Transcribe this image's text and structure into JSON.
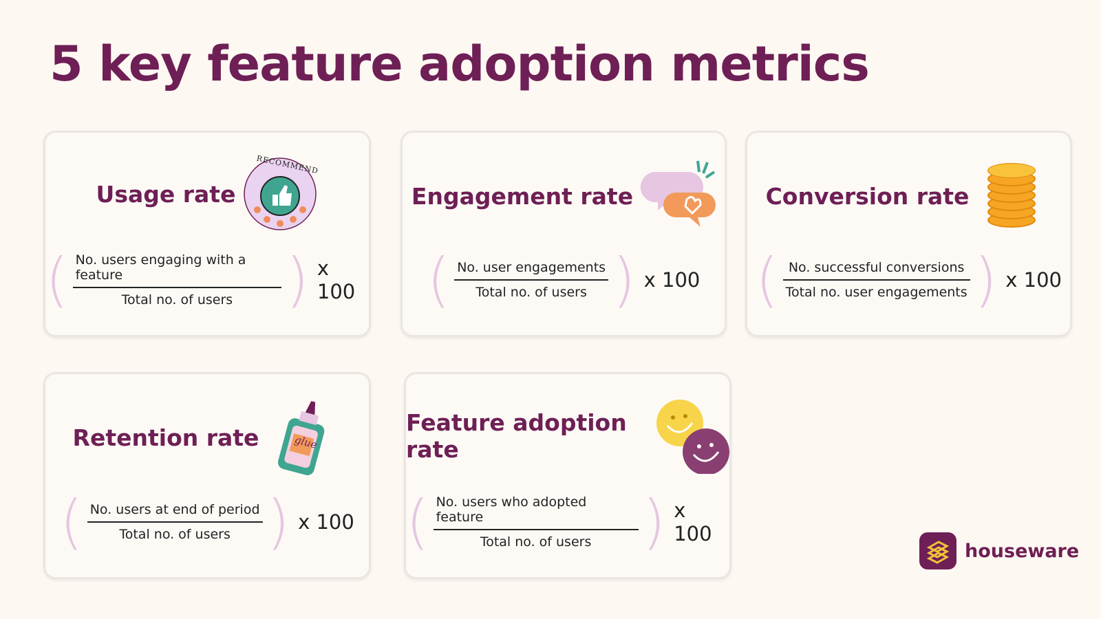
{
  "header": {
    "title": "5 key feature adoption metrics"
  },
  "cards": [
    {
      "title": "Usage rate",
      "numerator": "No. users engaging with a feature",
      "denominator": "Total no. of users",
      "multiplier": "x 100",
      "icon_text": "RECOMMEND"
    },
    {
      "title": "Engagement rate",
      "numerator": "No. user engagements",
      "denominator": "Total no. of users",
      "multiplier": "x 100"
    },
    {
      "title": "Conversion rate",
      "numerator": "No. successful conversions",
      "denominator": "Total no. user engagements",
      "multiplier": "x 100"
    },
    {
      "title": "Retention rate",
      "numerator": "No. users at end of period",
      "denominator": "Total no. of users",
      "multiplier": "x 100",
      "icon_text": "glue"
    },
    {
      "title": "Feature adoption rate",
      "numerator": "No. users who adopted feature",
      "denominator": "Total no. of users",
      "multiplier": "x 100"
    }
  ],
  "brand": {
    "name": "houseware"
  }
}
